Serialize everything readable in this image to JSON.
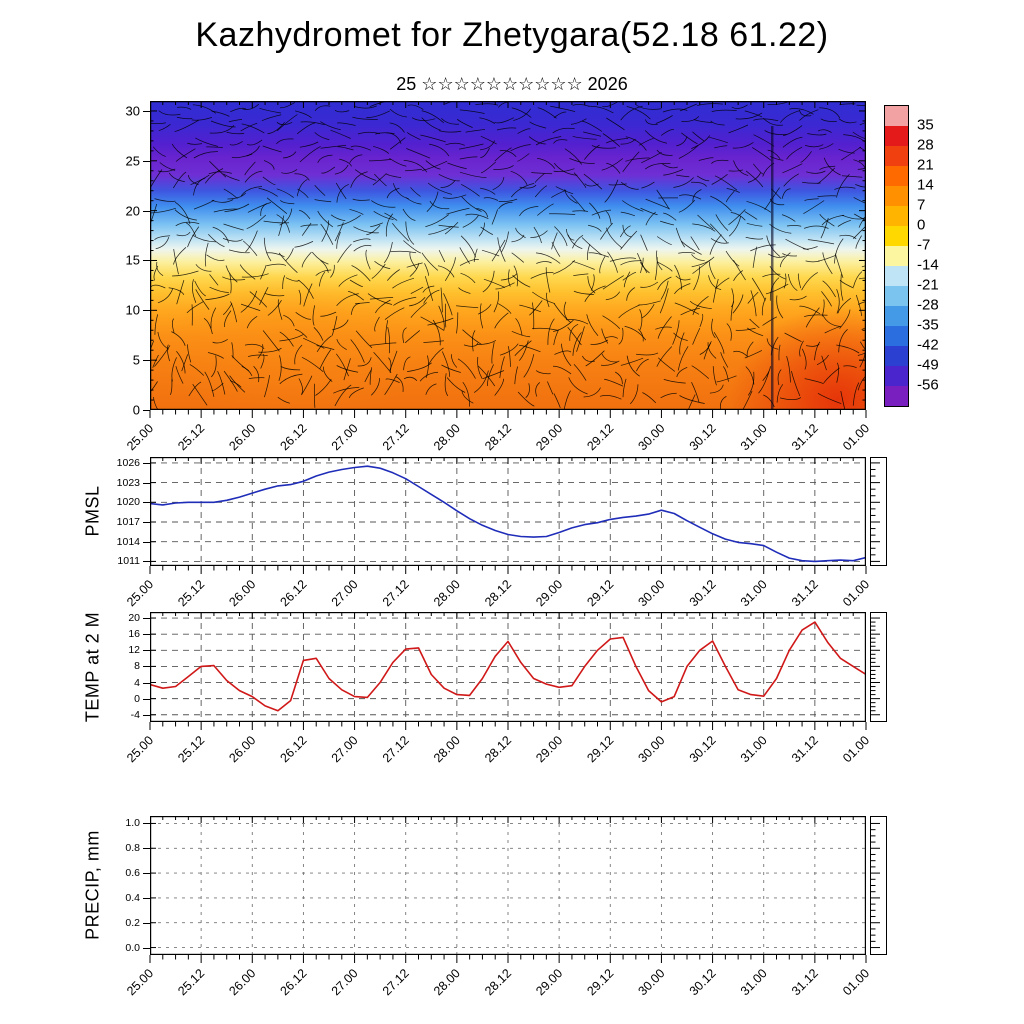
{
  "title": "Kazhydromet for Zhetygara(52.18 61.22)",
  "subtitle": "25 ☆☆☆☆☆☆☆☆☆☆ 2026",
  "time_axis": {
    "labels": [
      "25.00",
      "25.12",
      "26.00",
      "26.12",
      "27.00",
      "27.12",
      "28.00",
      "28.12",
      "29.00",
      "29.12",
      "30.00",
      "30.12",
      "31.00",
      "31.12",
      "01.00"
    ],
    "hours_span": 168,
    "minor_tick_hours": 3,
    "major_tick_hours": 12
  },
  "chart_data": [
    {
      "type": "heatmap",
      "name": "time-height cross-section",
      "ylabel": "",
      "yticks": [
        30,
        25,
        20,
        15,
        10,
        5,
        0
      ],
      "ylim": [
        0,
        31
      ],
      "overlay": "wind barbs",
      "shading_top_to_bottom": [
        "#2e2ed2",
        "#5320cf",
        "#6a24cf",
        "#3e55e0",
        "#3f8dee",
        "#7cc2f2",
        "#c2e4f4",
        "#eef6ee",
        "#fbf0a0",
        "#ffd84e",
        "#ffc02e",
        "#ffa61e",
        "#fb9016",
        "#f1700f"
      ],
      "colorbar": {
        "ticks": [
          35,
          28,
          21,
          14,
          7,
          0,
          -7,
          -14,
          -21,
          -28,
          -35,
          -42,
          -49,
          -56
        ],
        "colors": [
          "#f2a2a2",
          "#e41a1a",
          "#f04010",
          "#ff6a00",
          "#ff9000",
          "#ffb400",
          "#ffd800",
          "#fdf6a0",
          "#bfe4f6",
          "#7cc4f0",
          "#459ae8",
          "#2b6ee0",
          "#2b3fd0",
          "#4a24cc",
          "#7a1fbf"
        ]
      }
    },
    {
      "type": "line",
      "name": "PMSL",
      "ylabel": "PMSL",
      "yticks": [
        1026,
        1023,
        1020,
        1017,
        1014,
        1011
      ],
      "ylim": [
        1010.3,
        1026.9
      ],
      "grid": true,
      "x_step_hours": 3,
      "color": "#1f2db8",
      "values": [
        1019.8,
        1019.6,
        1019.9,
        1020.0,
        1020.0,
        1020.0,
        1020.3,
        1020.8,
        1021.4,
        1022.0,
        1022.5,
        1022.7,
        1023.2,
        1024.0,
        1024.6,
        1025.0,
        1025.3,
        1025.5,
        1025.2,
        1024.5,
        1023.6,
        1022.4,
        1021.2,
        1020.0,
        1018.7,
        1017.5,
        1016.5,
        1015.7,
        1015.1,
        1014.8,
        1014.7,
        1014.8,
        1015.4,
        1016.1,
        1016.6,
        1016.9,
        1017.4,
        1017.7,
        1017.9,
        1018.2,
        1018.8,
        1018.3,
        1017.2,
        1016.2,
        1015.2,
        1014.4,
        1013.9,
        1013.7,
        1013.4,
        1012.4,
        1011.5,
        1011.1,
        1011.0,
        1011.1,
        1011.2,
        1011.1,
        1011.6
      ]
    },
    {
      "type": "line",
      "name": "TEMP at 2 M",
      "ylabel": "TEMP at 2 M",
      "yticks": [
        20,
        16,
        12,
        8,
        4,
        0,
        -4
      ],
      "ylim": [
        -5.8,
        21.5
      ],
      "grid": true,
      "x_step_hours": 3,
      "color": "#d01818",
      "values": [
        3.5,
        2.6,
        3.0,
        5.5,
        8.0,
        8.2,
        4.5,
        2.0,
        0.5,
        -1.8,
        -3.0,
        -0.5,
        9.5,
        10.0,
        5.0,
        2.2,
        0.5,
        0.3,
        4.0,
        9.0,
        12.3,
        12.6,
        6.0,
        2.6,
        1.0,
        0.8,
        5.0,
        10.5,
        14.2,
        9.0,
        5.0,
        3.6,
        2.8,
        3.2,
        8.0,
        12.0,
        14.8,
        15.2,
        8.0,
        2.0,
        -0.8,
        0.5,
        8.0,
        12.0,
        14.3,
        8.0,
        2.2,
        1.0,
        0.6,
        5.0,
        12.0,
        17.0,
        19.0,
        14.0,
        10.0,
        8.0,
        6.0
      ]
    },
    {
      "type": "line",
      "name": "PRECIP, mm",
      "ylabel": "PRECIP, mm",
      "yticks": [
        1.0,
        0.8,
        0.6,
        0.4,
        0.2,
        0.0
      ],
      "ytick_labels": [
        "1.0",
        "0.8",
        "0.6",
        "0.4",
        "0.2",
        "0.0"
      ],
      "ylim": [
        -0.06,
        1.06
      ],
      "grid": true,
      "x_step_hours": 3,
      "color": "#1f2db8",
      "values": []
    }
  ]
}
